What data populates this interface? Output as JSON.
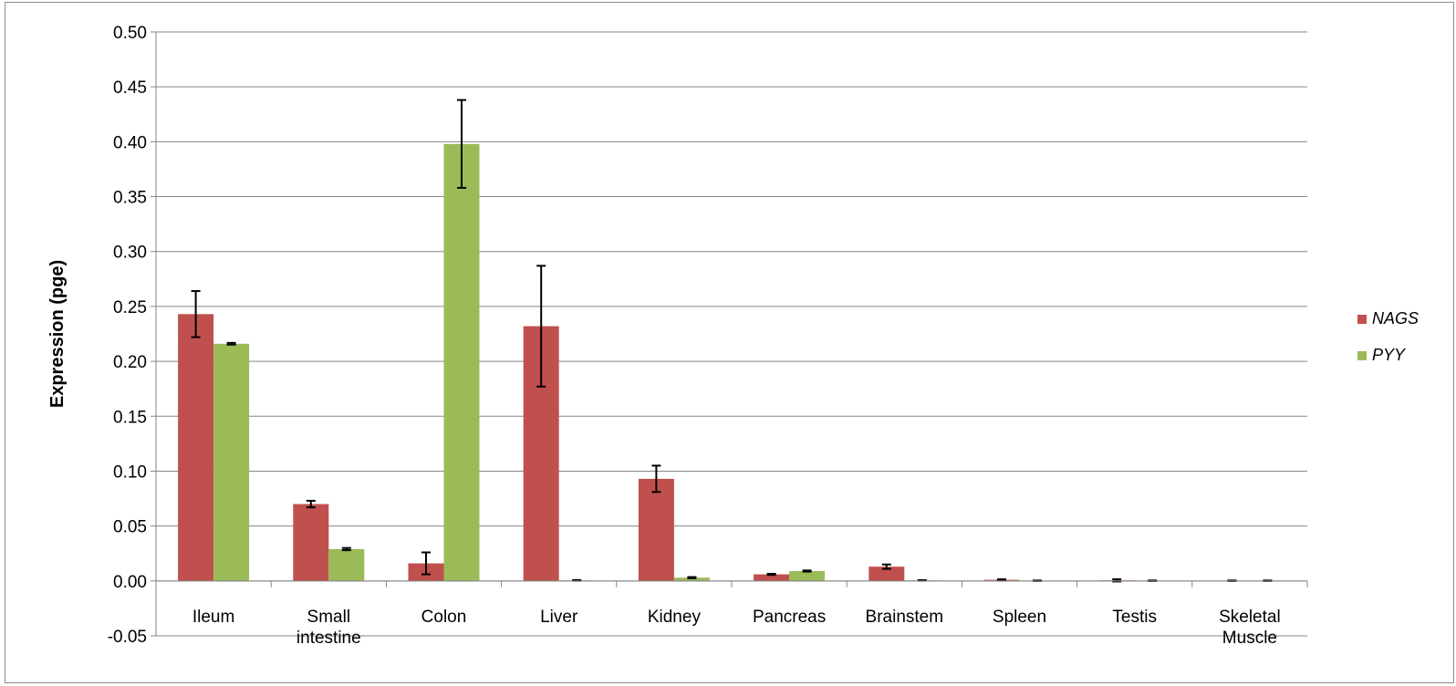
{
  "chart_data": {
    "type": "bar",
    "title": "",
    "xlabel": "",
    "ylabel": "Expression (pge)",
    "ylim": [
      -0.05,
      0.5
    ],
    "ytick_step": 0.05,
    "ytick_labels": [
      "-0.05",
      "0.00",
      "0.05",
      "0.10",
      "0.15",
      "0.20",
      "0.25",
      "0.30",
      "0.35",
      "0.40",
      "0.45",
      "0.50"
    ],
    "grid": true,
    "legend_position": "right",
    "categories": [
      [
        "Ileum"
      ],
      [
        "Small",
        "intestine"
      ],
      [
        "Colon"
      ],
      [
        "Liver"
      ],
      [
        "Kidney"
      ],
      [
        "Pancreas"
      ],
      [
        "Brainstem"
      ],
      [
        "Spleen"
      ],
      [
        "Testis"
      ],
      [
        "Skeletal",
        "Muscle"
      ]
    ],
    "series": [
      {
        "name": "NAGS",
        "color": "#c0504d",
        "values": [
          0.243,
          0.07,
          0.016,
          0.232,
          0.093,
          0.006,
          0.013,
          0.001,
          0.0005,
          0.0002
        ],
        "errors": [
          0.021,
          0.003,
          0.01,
          0.055,
          0.012,
          0.0005,
          0.002,
          0.0005,
          0.001,
          0.0002
        ]
      },
      {
        "name": "PYY",
        "color": "#9bbb59",
        "values": [
          0.216,
          0.029,
          0.398,
          0.0005,
          0.003,
          0.009,
          0.0005,
          0.0002,
          0.0002,
          0.0002
        ],
        "errors": [
          0.0008,
          0.001,
          0.04,
          0.0003,
          0.0005,
          0.0005,
          0.0002,
          0.0002,
          0.0002,
          0.0002
        ]
      }
    ]
  }
}
